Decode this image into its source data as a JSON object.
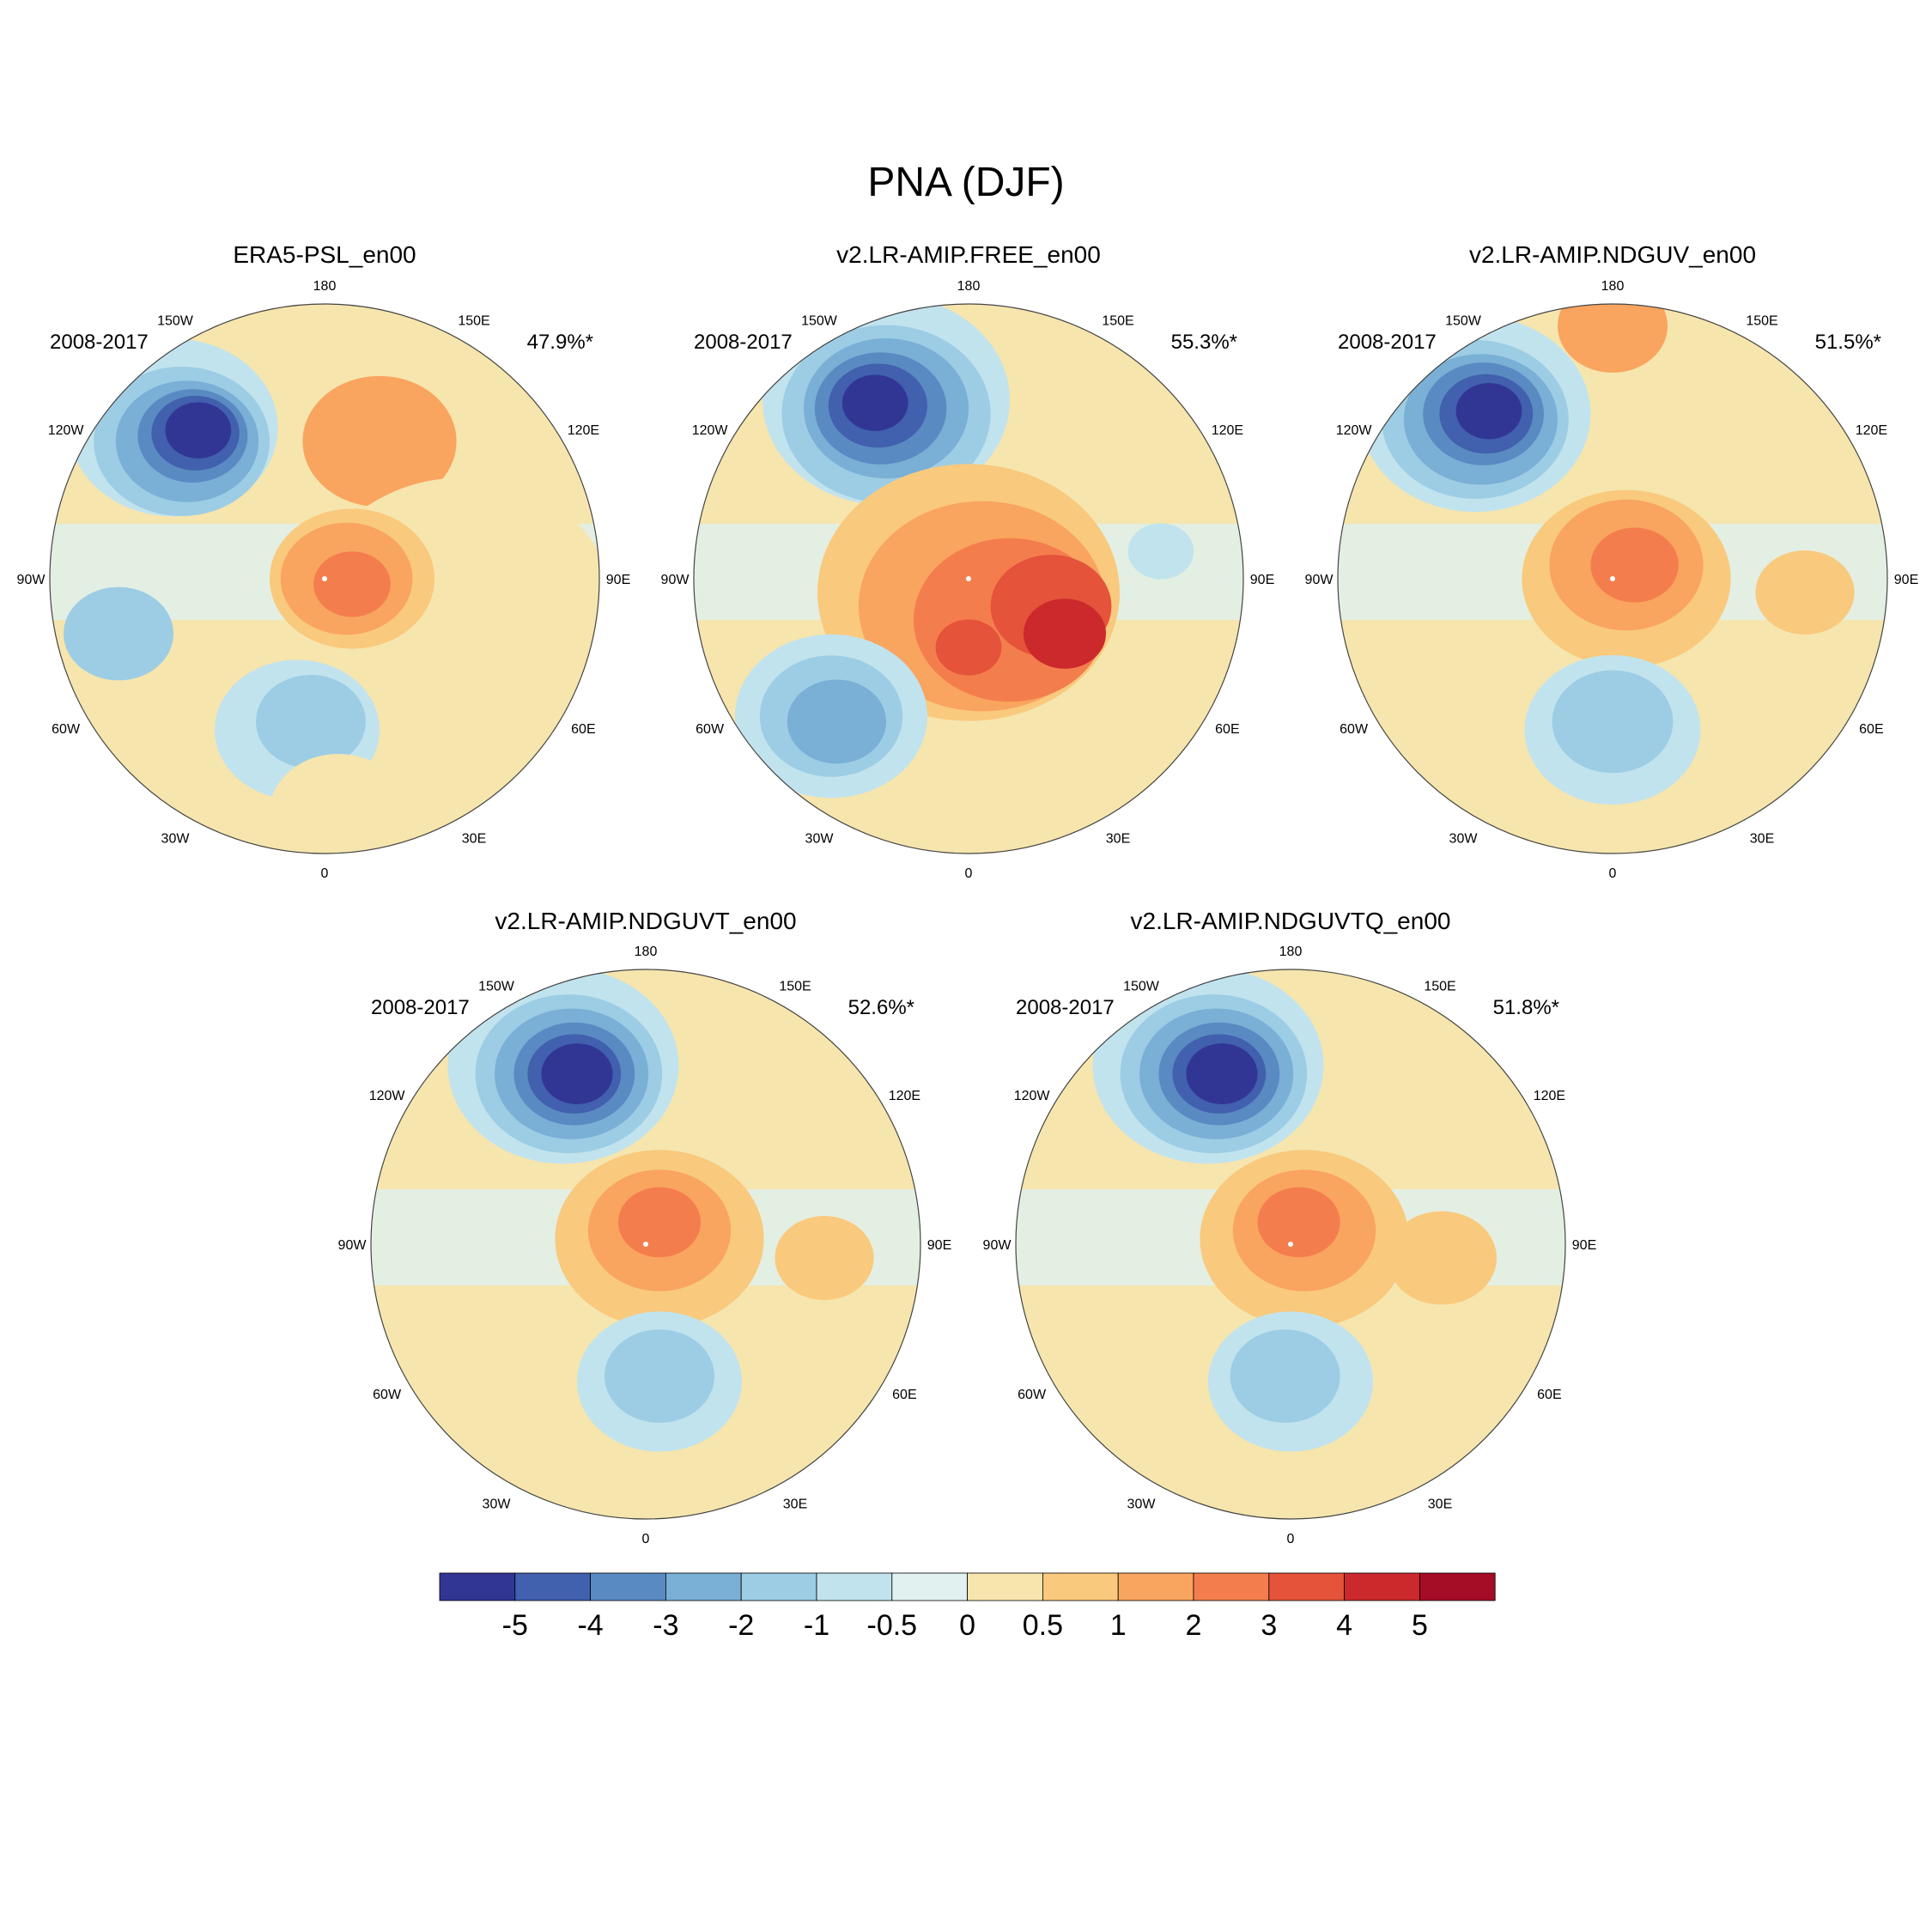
{
  "figure_title": "PNA (DJF)",
  "colors": {
    "levels": [
      "#313695",
      "#4160ad",
      "#5a8ac2",
      "#7aafd6",
      "#9dcde4",
      "#c1e3ee",
      "#e0f1f0",
      "#f6e5ad",
      "#f9c97d",
      "#f9a45f",
      "#f47d4d",
      "#e4533a",
      "#cc292c",
      "#a50c26"
    ]
  },
  "colorbar": {
    "labels": [
      "-5",
      "-4",
      "-3",
      "-2",
      "-1",
      "-0.5",
      "0",
      "0.5",
      "1",
      "2",
      "3",
      "4",
      "5"
    ]
  },
  "lon_labels": [
    "180",
    "150E",
    "120E",
    "90E",
    "60E",
    "30E",
    "0",
    "30W",
    "60W",
    "90W",
    "120W",
    "150W"
  ],
  "panels": [
    {
      "title": "ERA5-PSL_en00",
      "period": "2008-2017",
      "variance": "47.9%*"
    },
    {
      "title": "v2.LR-AMIP.FREE_en00",
      "period": "2008-2017",
      "variance": "55.3%*"
    },
    {
      "title": "v2.LR-AMIP.NDGUV_en00",
      "period": "2008-2017",
      "variance": "51.5%*"
    },
    {
      "title": "v2.LR-AMIP.NDGUVT_en00",
      "period": "2008-2017",
      "variance": "52.6%*"
    },
    {
      "title": "v2.LR-AMIP.NDGUVTQ_en00",
      "period": "2008-2017",
      "variance": "51.8%*"
    }
  ]
}
